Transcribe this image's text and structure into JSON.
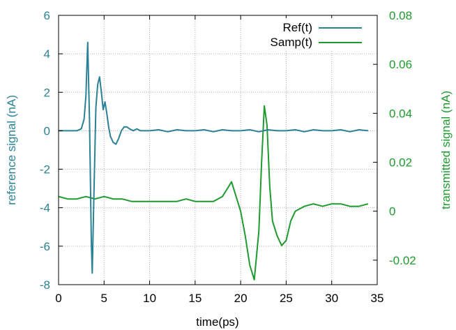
{
  "chart_data": {
    "type": "line",
    "xlabel": "time(ps)",
    "ylabel": "reference signal (nA)",
    "y2label": "transmitted signal (nA)",
    "xlim": [
      0,
      35
    ],
    "ylim": [
      -8,
      6
    ],
    "y2lim": [
      -0.03,
      0.08
    ],
    "x_ticks": [
      "0",
      "5",
      "10",
      "15",
      "20",
      "25",
      "30",
      "35"
    ],
    "y_ticks": [
      "-8",
      "-6",
      "-4",
      "-2",
      "0",
      "2",
      "4",
      "6"
    ],
    "y2_ticks": [
      "-0.02",
      "0",
      "0.02",
      "0.04",
      "0.06",
      "0.08"
    ],
    "grid": true,
    "legend": "top-right",
    "colors": {
      "ref": "#2a8196",
      "samp": "#1e9a2e"
    },
    "series": [
      {
        "name": "Ref(t)",
        "axis": "left",
        "x": [
          0,
          1,
          2,
          2.5,
          2.8,
          3.0,
          3.2,
          3.4,
          3.6,
          3.7,
          3.9,
          4.1,
          4.3,
          4.5,
          4.7,
          4.9,
          5.1,
          5.3,
          5.5,
          5.7,
          6.0,
          6.3,
          6.6,
          6.9,
          7.2,
          7.5,
          7.8,
          8.2,
          8.6,
          9.0,
          9.5,
          10,
          11,
          12,
          13,
          14,
          15,
          16,
          17,
          18,
          19,
          20,
          21,
          22,
          23,
          24,
          25,
          26,
          27,
          28,
          29,
          30,
          31,
          32,
          33,
          34
        ],
        "values": [
          0.0,
          0.0,
          0.0,
          0.1,
          0.6,
          1.8,
          4.6,
          0.5,
          -5.8,
          -7.4,
          -3.0,
          1.2,
          2.4,
          2.8,
          2.0,
          1.1,
          1.5,
          0.9,
          0.2,
          -0.3,
          -0.6,
          -0.7,
          -0.4,
          0.0,
          0.2,
          0.2,
          0.1,
          0.0,
          0.1,
          0.0,
          0.0,
          0.0,
          0.05,
          -0.05,
          0.05,
          0.0,
          0.0,
          0.05,
          -0.05,
          0.05,
          0.0,
          0.0,
          0.05,
          -0.05,
          0.05,
          0.0,
          0.0,
          0.05,
          -0.05,
          0.05,
          0.0,
          0.0,
          0.05,
          -0.05,
          0.05,
          0.0
        ]
      },
      {
        "name": "Samp(t)",
        "axis": "right",
        "x": [
          0,
          1,
          2,
          3,
          4,
          5,
          6,
          7,
          8,
          9,
          10,
          11,
          12,
          13,
          14,
          15,
          16,
          17,
          18,
          18.5,
          19,
          19.5,
          20,
          20.5,
          21,
          21.5,
          22,
          22.3,
          22.6,
          22.9,
          23.2,
          23.5,
          24,
          24.5,
          25,
          25.5,
          26,
          27,
          28,
          29,
          30,
          31,
          32,
          33,
          34
        ],
        "values": [
          0.006,
          0.005,
          0.005,
          0.006,
          0.005,
          0.006,
          0.005,
          0.005,
          0.004,
          0.004,
          0.004,
          0.004,
          0.004,
          0.004,
          0.005,
          0.004,
          0.004,
          0.004,
          0.006,
          0.009,
          0.012,
          0.006,
          0.0,
          -0.01,
          -0.022,
          -0.028,
          -0.008,
          0.02,
          0.043,
          0.035,
          0.01,
          -0.004,
          -0.01,
          -0.014,
          -0.012,
          -0.004,
          0.0,
          0.002,
          0.003,
          0.002,
          0.003,
          0.003,
          0.002,
          0.002,
          0.003
        ]
      }
    ]
  }
}
